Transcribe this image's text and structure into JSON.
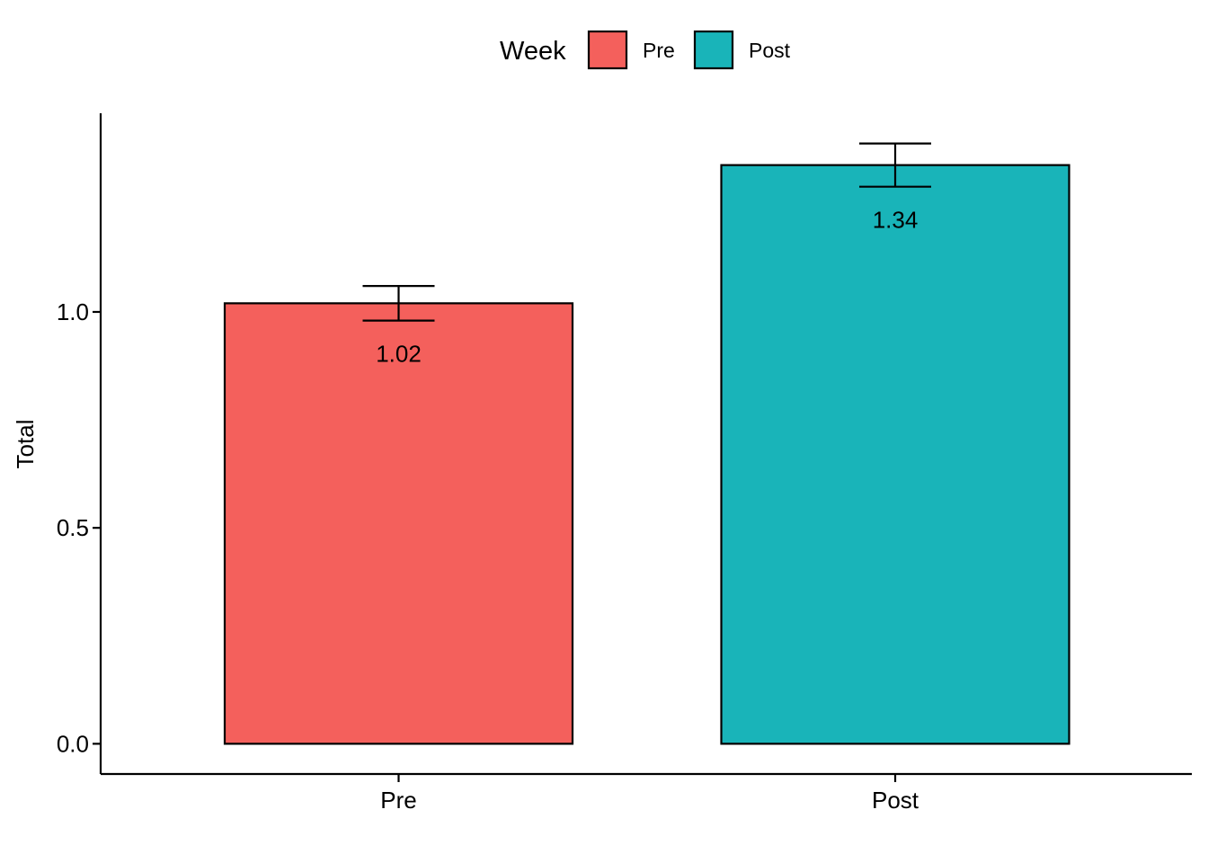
{
  "chart_data": {
    "type": "bar",
    "categories": [
      "Pre",
      "Post"
    ],
    "values": [
      1.02,
      1.34
    ],
    "error_low": [
      0.98,
      1.29
    ],
    "error_high": [
      1.06,
      1.39
    ],
    "data_labels": [
      "1.02",
      "1.34"
    ],
    "colors": [
      "#F4605C",
      "#19B4B9"
    ],
    "ylabel": "Total",
    "xlabel": "",
    "ylim": [
      -0.07,
      1.46
    ],
    "yticks": [
      0.0,
      0.5,
      1.0
    ],
    "ytick_labels": [
      "0.0",
      "0.5",
      "1.0"
    ],
    "grid": false,
    "legend": {
      "title": "Week",
      "placement": "top",
      "entries": [
        "Pre",
        "Post"
      ]
    }
  }
}
